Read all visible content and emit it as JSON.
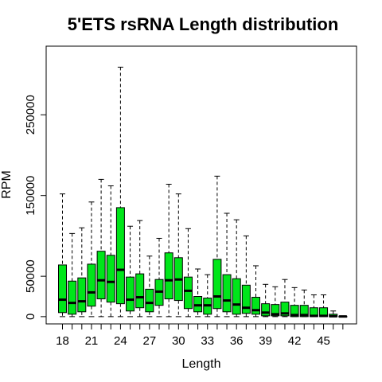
{
  "chart_data": {
    "type": "boxplot",
    "title": "5'ETS rsRNA Length distribution",
    "xlabel": "Length",
    "ylabel": "RPM",
    "ylim": [
      -9000,
      335000
    ],
    "x_tick_labels": [
      "18",
      "21",
      "24",
      "27",
      "30",
      "33",
      "36",
      "39",
      "42",
      "45"
    ],
    "y_tick_labels": [
      "0",
      "50000",
      "150000",
      "250000"
    ],
    "y_tick_values": [
      0,
      50000,
      150000,
      250000
    ],
    "box_color": "#00e61a",
    "series": [
      {
        "length": 18,
        "min": 0,
        "q1": 5000,
        "median": 21000,
        "q3": 64000,
        "max": 152000
      },
      {
        "length": 19,
        "min": 0,
        "q1": 3000,
        "median": 17000,
        "q3": 44000,
        "max": 103000
      },
      {
        "length": 20,
        "min": 0,
        "q1": 6000,
        "median": 19000,
        "q3": 48000,
        "max": 110000
      },
      {
        "length": 21,
        "min": 0,
        "q1": 13000,
        "median": 30000,
        "q3": 65000,
        "max": 142000
      },
      {
        "length": 22,
        "min": 0,
        "q1": 22000,
        "median": 45000,
        "q3": 81000,
        "max": 170000
      },
      {
        "length": 23,
        "min": 0,
        "q1": 18000,
        "median": 43000,
        "q3": 76000,
        "max": 162000
      },
      {
        "length": 24,
        "min": 0,
        "q1": 16000,
        "median": 58000,
        "q3": 135000,
        "max": 309000
      },
      {
        "length": 25,
        "min": 0,
        "q1": 7000,
        "median": 21000,
        "q3": 49000,
        "max": 112000
      },
      {
        "length": 26,
        "min": 0,
        "q1": 11000,
        "median": 24000,
        "q3": 53000,
        "max": 119000
      },
      {
        "length": 27,
        "min": 0,
        "q1": 6000,
        "median": 17000,
        "q3": 34000,
        "max": 75000
      },
      {
        "length": 28,
        "min": 0,
        "q1": 14000,
        "median": 31000,
        "q3": 46000,
        "max": 97000
      },
      {
        "length": 29,
        "min": 0,
        "q1": 22000,
        "median": 45000,
        "q3": 79000,
        "max": 164000
      },
      {
        "length": 30,
        "min": 0,
        "q1": 20000,
        "median": 46000,
        "q3": 73000,
        "max": 152000
      },
      {
        "length": 31,
        "min": 0,
        "q1": 10000,
        "median": 32000,
        "q3": 49000,
        "max": 109000
      },
      {
        "length": 32,
        "min": 0,
        "q1": 6000,
        "median": 14000,
        "q3": 25000,
        "max": 59000
      },
      {
        "length": 33,
        "min": 0,
        "q1": 3000,
        "median": 14000,
        "q3": 23000,
        "max": 52000
      },
      {
        "length": 34,
        "min": 0,
        "q1": 10000,
        "median": 25000,
        "q3": 71000,
        "max": 174000
      },
      {
        "length": 35,
        "min": 0,
        "q1": 6000,
        "median": 20000,
        "q3": 52000,
        "max": 128000
      },
      {
        "length": 36,
        "min": 0,
        "q1": 3000,
        "median": 15000,
        "q3": 47000,
        "max": 120000
      },
      {
        "length": 37,
        "min": 0,
        "q1": 4000,
        "median": 11000,
        "q3": 39000,
        "max": 100000
      },
      {
        "length": 38,
        "min": 0,
        "q1": 3000,
        "median": 8000,
        "q3": 24000,
        "max": 63000
      },
      {
        "length": 39,
        "min": 0,
        "q1": 1000,
        "median": 5000,
        "q3": 16000,
        "max": 40000
      },
      {
        "length": 40,
        "min": 0,
        "q1": 1000,
        "median": 3000,
        "q3": 15000,
        "max": 37000
      },
      {
        "length": 41,
        "min": 0,
        "q1": 1000,
        "median": 4000,
        "q3": 18000,
        "max": 46000
      },
      {
        "length": 42,
        "min": 0,
        "q1": 0,
        "median": 2000,
        "q3": 14000,
        "max": 36000
      },
      {
        "length": 43,
        "min": 0,
        "q1": 0,
        "median": 2000,
        "q3": 14000,
        "max": 33000
      },
      {
        "length": 44,
        "min": 0,
        "q1": 0,
        "median": 1000,
        "q3": 11000,
        "max": 27000
      },
      {
        "length": 45,
        "min": 0,
        "q1": 0,
        "median": 1000,
        "q3": 11000,
        "max": 27000
      },
      {
        "length": 46,
        "min": 0,
        "q1": 0,
        "median": 500,
        "q3": 3000,
        "max": 7000
      },
      {
        "length": 47,
        "min": 0,
        "q1": 0,
        "median": 200,
        "q3": 500,
        "max": 1000
      }
    ]
  }
}
